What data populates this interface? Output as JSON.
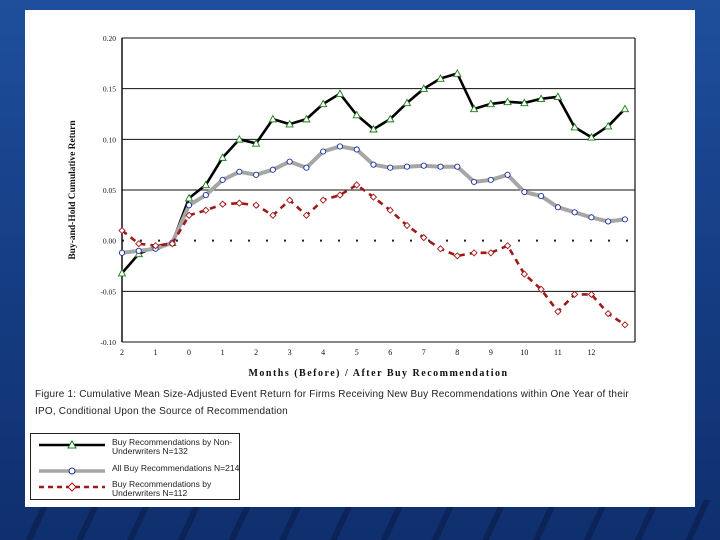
{
  "colors": {
    "background": "#1a4790",
    "slide": "#ffffff",
    "non_underwriters": "#000000",
    "all": "#a6a6a6",
    "underwriters": "#a01818"
  },
  "caption": {
    "line1": "Figure 1: Cumulative Mean Size-Adjusted Event Return for Firms Receiving New Buy Recommendations within One Year of their",
    "line2": "IPO, Conditional Upon the Source of Recommendation"
  },
  "legend": {
    "items": [
      {
        "label_line1": "Buy Recommendations by Non-",
        "label_line2": "Underwriters N=132"
      },
      {
        "label_line1": "All Buy Recommendations N=214",
        "label_line2": ""
      },
      {
        "label_line1": "Buy Recommendations by",
        "label_line2": "Underwriters N=112"
      }
    ]
  },
  "chart_data": {
    "type": "line",
    "title": "",
    "xlabel": "Months (Before) / After Buy Recommendation",
    "ylabel": "Buy-and-Hold Cumulative Return",
    "xlim": [
      -2.0,
      13.3
    ],
    "ylim": [
      -0.1,
      0.2
    ],
    "xticks": [
      -2,
      -1,
      0,
      1,
      2,
      3,
      4,
      5,
      6,
      7,
      8,
      9,
      10,
      11,
      12
    ],
    "xtick_labels": [
      "2",
      "1",
      "0",
      "1",
      "2",
      "3",
      "4",
      "5",
      "6",
      "7",
      "8",
      "9",
      "10",
      "11",
      "12"
    ],
    "yticks": [
      -0.1,
      -0.05,
      0.0,
      0.05,
      0.1,
      0.15,
      0.2
    ],
    "ytick_labels": [
      "-0.10",
      "-0.05",
      "0.00",
      "0.05",
      "0.10",
      "0.15",
      "0.20"
    ],
    "grid": "horizontal",
    "zero_line": "dotted",
    "series": [
      {
        "name": "Buy Recommendations by Non-Underwriters N=132",
        "marker": "triangle",
        "x": [
          -2,
          -1.5,
          -1,
          -0.5,
          0,
          0.5,
          1,
          1.5,
          2,
          2.5,
          3,
          3.5,
          4,
          4.5,
          5,
          5.5,
          6,
          6.5,
          7,
          7.5,
          8,
          8.5,
          9,
          9.5,
          10,
          10.5,
          11,
          11.5,
          12,
          12.5,
          13
        ],
        "values": [
          -0.032,
          -0.013,
          -0.006,
          -0.002,
          0.042,
          0.055,
          0.082,
          0.1,
          0.096,
          0.12,
          0.115,
          0.12,
          0.135,
          0.145,
          0.124,
          0.11,
          0.12,
          0.136,
          0.15,
          0.16,
          0.165,
          0.13,
          0.135,
          0.137,
          0.136,
          0.14,
          0.142,
          0.112,
          0.102,
          0.113,
          0.13
        ]
      },
      {
        "name": "All Buy Recommendations N=214",
        "marker": "circle",
        "x": [
          -2,
          -1.5,
          -1,
          -0.5,
          0,
          0.5,
          1,
          1.5,
          2,
          2.5,
          3,
          3.5,
          4,
          4.5,
          5,
          5.5,
          6,
          6.5,
          7,
          7.5,
          8,
          8.5,
          9,
          9.5,
          10,
          10.5,
          11,
          11.5,
          12,
          12.5,
          13
        ],
        "values": [
          -0.012,
          -0.01,
          -0.008,
          -0.002,
          0.035,
          0.045,
          0.06,
          0.068,
          0.065,
          0.07,
          0.078,
          0.072,
          0.088,
          0.093,
          0.09,
          0.075,
          0.072,
          0.073,
          0.074,
          0.073,
          0.073,
          0.058,
          0.06,
          0.065,
          0.048,
          0.044,
          0.033,
          0.028,
          0.023,
          0.019,
          0.021
        ]
      },
      {
        "name": "Buy Recommendations by Underwriters N=112",
        "marker": "diamond",
        "x": [
          -2,
          -1.5,
          -1,
          -0.5,
          0,
          0.5,
          1,
          1.5,
          2,
          2.5,
          3,
          3.5,
          4,
          4.5,
          5,
          5.5,
          6,
          6.5,
          7,
          7.5,
          8,
          8.5,
          9,
          9.5,
          10,
          10.5,
          11,
          11.5,
          12,
          12.5,
          13
        ],
        "values": [
          0.01,
          -0.003,
          -0.005,
          -0.003,
          0.025,
          0.03,
          0.036,
          0.037,
          0.035,
          0.025,
          0.04,
          0.025,
          0.04,
          0.045,
          0.055,
          0.043,
          0.03,
          0.015,
          0.003,
          -0.008,
          -0.015,
          -0.012,
          -0.012,
          -0.005,
          -0.033,
          -0.048,
          -0.07,
          -0.053,
          -0.053,
          -0.072,
          -0.083
        ]
      }
    ]
  }
}
